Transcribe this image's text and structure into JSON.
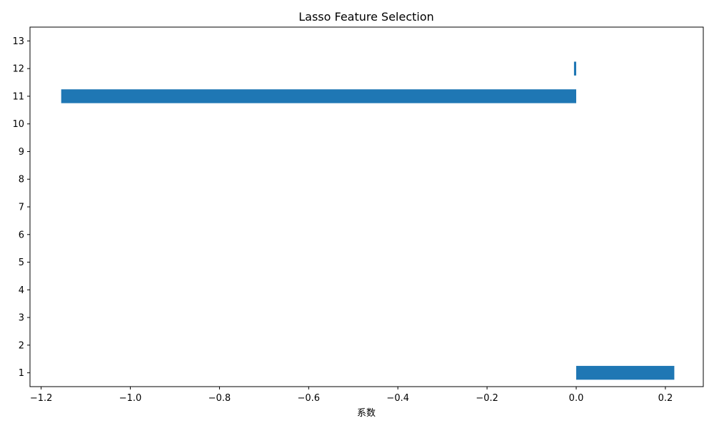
{
  "chart_data": {
    "type": "bar",
    "orientation": "horizontal",
    "title": "Lasso Feature Selection",
    "xlabel": "系数",
    "ylabel": "",
    "categories": [
      "1",
      "2",
      "3",
      "4",
      "5",
      "6",
      "7",
      "8",
      "9",
      "10",
      "11",
      "12",
      "13"
    ],
    "values": [
      0.22,
      0,
      0,
      0,
      0,
      0,
      0,
      0,
      0,
      0,
      -1.155,
      -0.005,
      0
    ],
    "xlim": [
      -1.225,
      0.285
    ],
    "xticks": [
      -1.2,
      -1.0,
      -0.8,
      -0.6,
      -0.4,
      -0.2,
      0.0,
      0.2
    ],
    "xtick_labels": [
      "−1.2",
      "−1.0",
      "−0.8",
      "−0.6",
      "−0.4",
      "−0.2",
      "0.0",
      "0.2"
    ],
    "grid": false,
    "bar_color": "#1f77b4"
  }
}
